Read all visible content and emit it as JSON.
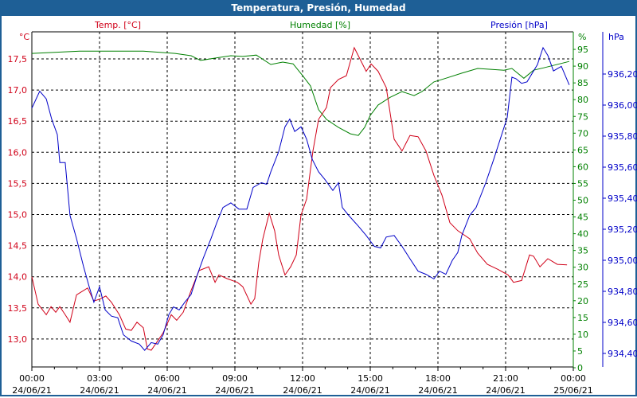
{
  "window": {
    "title": "Temperatura, Presión, Humedad"
  },
  "colors": {
    "temp": "#d00018",
    "hum": "#008000",
    "pres": "#0000c8",
    "title_bg": "#1e5f96"
  },
  "chart_data": {
    "type": "line",
    "title": "Temperatura, Presión, Humedad",
    "grid": true,
    "x_unit": "hours since 24/06/21 00:00",
    "xlim": [
      0,
      24
    ],
    "x_ticks": [
      {
        "h": 0,
        "time": "00:00",
        "date": "24/06/21"
      },
      {
        "h": 3,
        "time": "03:00",
        "date": "24/06/21"
      },
      {
        "h": 6,
        "time": "06:00",
        "date": "24/06/21"
      },
      {
        "h": 9,
        "time": "09:00",
        "date": "24/06/21"
      },
      {
        "h": 12,
        "time": "12:00",
        "date": "24/06/21"
      },
      {
        "h": 15,
        "time": "15:00",
        "date": "24/06/21"
      },
      {
        "h": 18,
        "time": "18:00",
        "date": "24/06/21"
      },
      {
        "h": 21,
        "time": "21:00",
        "date": "24/06/21"
      },
      {
        "h": 24,
        "time": "00:00",
        "date": "25/06/21"
      }
    ],
    "axes": {
      "temp": {
        "label": "Temp. [°C]",
        "unit": "°C",
        "ylim": [
          12.66,
          17.95
        ],
        "ticks": [
          {
            "v": 13.0,
            "t": "13,0"
          },
          {
            "v": 13.5,
            "t": "13,5"
          },
          {
            "v": 14.0,
            "t": "14,0"
          },
          {
            "v": 14.5,
            "t": "14,5"
          },
          {
            "v": 15.0,
            "t": "15,0"
          },
          {
            "v": 15.5,
            "t": "15,5"
          },
          {
            "v": 16.0,
            "t": "16,0"
          },
          {
            "v": 16.5,
            "t": "16,5"
          },
          {
            "v": 17.0,
            "t": "17,0"
          },
          {
            "v": 17.5,
            "t": "17,5"
          }
        ]
      },
      "hum": {
        "label": "Humedad [%]",
        "unit": "%",
        "ylim": [
          0,
          95
        ],
        "ticks": [
          "0",
          "5",
          "10",
          "15",
          "20",
          "25",
          "30",
          "35",
          "40",
          "45",
          "50",
          "55",
          "60",
          "65",
          "70",
          "75",
          "80",
          "85",
          "90",
          "95"
        ]
      },
      "pres": {
        "label": "Presión [hPa]",
        "unit": "hPa",
        "ylim": [
          934.4,
          936.2
        ],
        "ticks": [
          {
            "v": 934.4,
            "t": "934,40"
          },
          {
            "v": 934.6,
            "t": "934,60"
          },
          {
            "v": 934.8,
            "t": "934,80"
          },
          {
            "v": 935.0,
            "t": "935,00"
          },
          {
            "v": 935.2,
            "t": "935,20"
          },
          {
            "v": 935.4,
            "t": "935,40"
          },
          {
            "v": 935.6,
            "t": "935,60"
          },
          {
            "v": 935.8,
            "t": "935,80"
          },
          {
            "v": 936.0,
            "t": "936,00"
          },
          {
            "v": 936.2,
            "t": "936,20"
          }
        ]
      }
    },
    "series": [
      {
        "name": "Temp. [°C]",
        "axis": "temp",
        "points": [
          [
            0,
            14.0
          ],
          [
            0.28,
            13.56
          ],
          [
            0.64,
            13.39
          ],
          [
            0.85,
            13.52
          ],
          [
            1.06,
            13.43
          ],
          [
            1.24,
            13.52
          ],
          [
            1.48,
            13.39
          ],
          [
            1.69,
            13.27
          ],
          [
            1.98,
            13.71
          ],
          [
            2.47,
            13.82
          ],
          [
            2.75,
            13.61
          ],
          [
            3.0,
            13.64
          ],
          [
            3.28,
            13.69
          ],
          [
            3.53,
            13.59
          ],
          [
            3.88,
            13.39
          ],
          [
            4.16,
            13.16
          ],
          [
            4.41,
            13.14
          ],
          [
            4.66,
            13.27
          ],
          [
            4.94,
            13.18
          ],
          [
            5.12,
            12.84
          ],
          [
            5.29,
            12.82
          ],
          [
            5.54,
            12.95
          ],
          [
            5.82,
            13.1
          ],
          [
            6.18,
            13.39
          ],
          [
            6.42,
            13.3
          ],
          [
            6.71,
            13.43
          ],
          [
            7.06,
            13.78
          ],
          [
            7.41,
            14.1
          ],
          [
            7.84,
            14.16
          ],
          [
            8.12,
            13.91
          ],
          [
            8.29,
            14.03
          ],
          [
            8.65,
            13.97
          ],
          [
            9.11,
            13.91
          ],
          [
            9.35,
            13.84
          ],
          [
            9.71,
            13.56
          ],
          [
            9.88,
            13.65
          ],
          [
            10.06,
            14.23
          ],
          [
            10.24,
            14.61
          ],
          [
            10.52,
            15.02
          ],
          [
            10.76,
            14.74
          ],
          [
            10.94,
            14.35
          ],
          [
            11.22,
            14.03
          ],
          [
            11.47,
            14.16
          ],
          [
            11.72,
            14.35
          ],
          [
            11.93,
            14.99
          ],
          [
            12.18,
            15.25
          ],
          [
            12.46,
            16.02
          ],
          [
            12.71,
            16.53
          ],
          [
            13.06,
            16.72
          ],
          [
            13.24,
            17.04
          ],
          [
            13.59,
            17.17
          ],
          [
            13.94,
            17.23
          ],
          [
            14.29,
            17.68
          ],
          [
            14.82,
            17.3
          ],
          [
            15.04,
            17.42
          ],
          [
            15.35,
            17.3
          ],
          [
            15.71,
            17.04
          ],
          [
            16.06,
            16.21
          ],
          [
            16.41,
            16.02
          ],
          [
            16.76,
            16.27
          ],
          [
            17.12,
            16.25
          ],
          [
            17.47,
            16.02
          ],
          [
            17.82,
            15.63
          ],
          [
            18.18,
            15.31
          ],
          [
            18.53,
            14.87
          ],
          [
            18.88,
            14.74
          ],
          [
            19.41,
            14.61
          ],
          [
            19.76,
            14.38
          ],
          [
            20.19,
            14.2
          ],
          [
            20.65,
            14.12
          ],
          [
            21.11,
            14.03
          ],
          [
            21.35,
            13.91
          ],
          [
            21.71,
            13.94
          ],
          [
            22.06,
            14.35
          ],
          [
            22.24,
            14.33
          ],
          [
            22.52,
            14.16
          ],
          [
            22.87,
            14.29
          ],
          [
            23.29,
            14.2
          ],
          [
            23.72,
            14.19
          ]
        ]
      },
      {
        "name": "Humedad [%]",
        "axis": "hum",
        "points": [
          [
            0,
            93.8
          ],
          [
            2.12,
            94.5
          ],
          [
            4.94,
            94.5
          ],
          [
            6.35,
            93.8
          ],
          [
            7.06,
            93.1
          ],
          [
            7.48,
            91.7
          ],
          [
            8.12,
            92.4
          ],
          [
            8.82,
            93.1
          ],
          [
            9.35,
            92.9
          ],
          [
            9.95,
            93.3
          ],
          [
            10.59,
            90.5
          ],
          [
            11.12,
            91.2
          ],
          [
            11.58,
            90.7
          ],
          [
            12.0,
            87.2
          ],
          [
            12.35,
            84.1
          ],
          [
            12.71,
            77.0
          ],
          [
            13.06,
            74.1
          ],
          [
            13.59,
            71.7
          ],
          [
            14.12,
            69.8
          ],
          [
            14.47,
            69.3
          ],
          [
            14.75,
            71.7
          ],
          [
            15.0,
            75.3
          ],
          [
            15.35,
            78.4
          ],
          [
            15.88,
            80.7
          ],
          [
            16.41,
            82.4
          ],
          [
            16.94,
            81.2
          ],
          [
            17.29,
            82.4
          ],
          [
            17.82,
            85.3
          ],
          [
            18.35,
            86.4
          ],
          [
            19.06,
            87.9
          ],
          [
            19.76,
            89.3
          ],
          [
            20.93,
            88.8
          ],
          [
            21.28,
            89.3
          ],
          [
            21.81,
            86.4
          ],
          [
            22.24,
            88.8
          ],
          [
            22.69,
            89.5
          ],
          [
            23.82,
            91.4
          ]
        ]
      },
      {
        "name": "Presión [hPa]",
        "axis": "pres",
        "points": [
          [
            0,
            935.98
          ],
          [
            0.35,
            936.09
          ],
          [
            0.64,
            936.04
          ],
          [
            0.88,
            935.91
          ],
          [
            1.13,
            935.81
          ],
          [
            1.24,
            935.63
          ],
          [
            1.48,
            935.63
          ],
          [
            1.69,
            935.29
          ],
          [
            1.98,
            935.14
          ],
          [
            2.29,
            934.96
          ],
          [
            2.54,
            934.83
          ],
          [
            2.75,
            934.73
          ],
          [
            3.0,
            934.83
          ],
          [
            3.25,
            934.68
          ],
          [
            3.53,
            934.64
          ],
          [
            3.81,
            934.63
          ],
          [
            4.06,
            934.52
          ],
          [
            4.41,
            934.48
          ],
          [
            4.76,
            934.46
          ],
          [
            5.0,
            934.42
          ],
          [
            5.29,
            934.47
          ],
          [
            5.58,
            934.46
          ],
          [
            5.82,
            934.52
          ],
          [
            6.07,
            934.65
          ],
          [
            6.28,
            934.7
          ],
          [
            6.53,
            934.68
          ],
          [
            6.78,
            934.73
          ],
          [
            7.06,
            934.78
          ],
          [
            7.34,
            934.91
          ],
          [
            7.59,
            935.01
          ],
          [
            7.94,
            935.14
          ],
          [
            8.19,
            935.24
          ],
          [
            8.47,
            935.34
          ],
          [
            8.82,
            935.37
          ],
          [
            9.18,
            935.33
          ],
          [
            9.53,
            935.33
          ],
          [
            9.81,
            935.47
          ],
          [
            10.17,
            935.5
          ],
          [
            10.41,
            935.49
          ],
          [
            10.59,
            935.57
          ],
          [
            10.94,
            935.7
          ],
          [
            11.22,
            935.86
          ],
          [
            11.43,
            935.91
          ],
          [
            11.65,
            935.83
          ],
          [
            11.93,
            935.86
          ],
          [
            12.18,
            935.78
          ],
          [
            12.43,
            935.65
          ],
          [
            12.71,
            935.57
          ],
          [
            12.99,
            935.52
          ],
          [
            13.34,
            935.45
          ],
          [
            13.59,
            935.5
          ],
          [
            13.76,
            935.34
          ],
          [
            14.04,
            935.29
          ],
          [
            14.47,
            935.22
          ],
          [
            14.82,
            935.16
          ],
          [
            15.18,
            935.09
          ],
          [
            15.46,
            935.08
          ],
          [
            15.71,
            935.15
          ],
          [
            16.06,
            935.16
          ],
          [
            16.41,
            935.09
          ],
          [
            16.76,
            935.01
          ],
          [
            17.12,
            934.93
          ],
          [
            17.47,
            934.91
          ],
          [
            17.82,
            934.88
          ],
          [
            18.07,
            934.93
          ],
          [
            18.35,
            934.91
          ],
          [
            18.64,
            935.0
          ],
          [
            18.88,
            935.05
          ],
          [
            19.06,
            935.16
          ],
          [
            19.41,
            935.29
          ],
          [
            19.69,
            935.34
          ],
          [
            20.12,
            935.5
          ],
          [
            20.47,
            935.65
          ],
          [
            21.07,
            935.92
          ],
          [
            21.28,
            936.18
          ],
          [
            21.46,
            936.17
          ],
          [
            21.71,
            936.14
          ],
          [
            21.95,
            936.15
          ],
          [
            22.41,
            936.26
          ],
          [
            22.66,
            936.37
          ],
          [
            22.87,
            936.32
          ],
          [
            23.12,
            936.22
          ],
          [
            23.47,
            936.25
          ],
          [
            23.82,
            936.13
          ]
        ]
      }
    ]
  }
}
